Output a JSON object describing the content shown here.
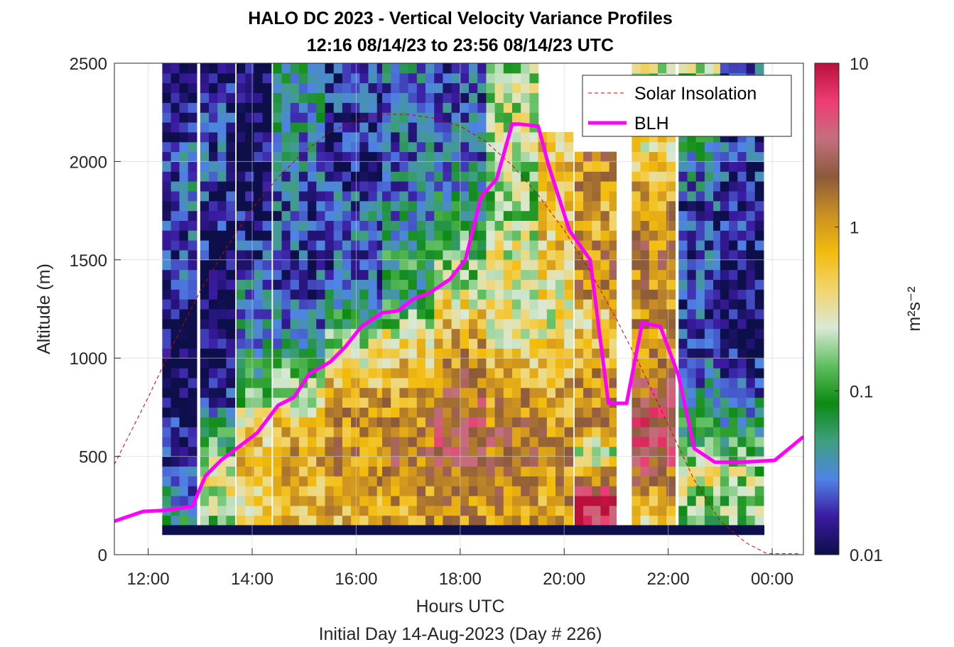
{
  "chart_data": {
    "type": "heatmap",
    "title": "HALO DC 2023 - Vertical Velocity Variance Profiles",
    "subtitle": "12:16 08/14/23 to 23:56 08/14/23  UTC",
    "xlabel": "Hours UTC",
    "footer": "Initial Day 14-Aug-2023 (Day # 226)",
    "ylabel": "Altitude (m)",
    "xlim": [
      11.35,
      24.6
    ],
    "ylim": [
      0,
      2500
    ],
    "x_ticks": [
      12,
      14,
      16,
      18,
      20,
      22,
      24
    ],
    "x_tick_labels": [
      "12:00",
      "14:00",
      "16:00",
      "18:00",
      "20:00",
      "22:00",
      "00:00"
    ],
    "y_ticks": [
      0,
      500,
      1000,
      1500,
      2000,
      2500
    ],
    "y_tick_labels": [
      "0",
      "500",
      "1000",
      "1500",
      "2000",
      "2500"
    ],
    "grid": true,
    "colorbar": {
      "label": "m²s⁻²",
      "scale": "log",
      "range": [
        0.01,
        10
      ],
      "ticks": [
        0.01,
        0.1,
        1,
        10
      ],
      "tick_labels": [
        "0.01",
        "0.1",
        "1",
        "10"
      ],
      "colors": [
        "#0c0f4a",
        "#3a1aa0",
        "#4f84e6",
        "#3f9f7f",
        "#0d8a12",
        "#5fbf5f",
        "#d9e9d6",
        "#f1d56e",
        "#f3bc0c",
        "#c98f23",
        "#8b5a3a",
        "#c46f7d",
        "#ee3c73",
        "#b8113a"
      ]
    },
    "grid_data": {
      "x_start": 12.27,
      "x_step": 0.1667,
      "y_start": 100,
      "y_step": 50,
      "bottom_band_value": 0.01,
      "bottom_band_range": [
        100,
        150
      ],
      "columns": [
        {
          "x_range": [
            12.27,
            12.6
          ],
          "profile": [
            [
              150,
              0.07
            ],
            [
              250,
              0.05
            ],
            [
              400,
              0.02
            ],
            [
              900,
              0.01
            ],
            [
              1700,
              0.02
            ],
            [
              2100,
              0.015
            ],
            [
              2500,
              0.01
            ]
          ]
        },
        {
          "x_range": [
            12.6,
            13.0
          ],
          "profile": [
            [
              150,
              0.06
            ],
            [
              300,
              0.03
            ],
            [
              500,
              0.012
            ],
            [
              1000,
              0.01
            ],
            [
              1500,
              0.02
            ],
            [
              1900,
              0.03
            ],
            [
              2500,
              0.01
            ]
          ]
        },
        {
          "x_range": [
            13.0,
            13.7
          ],
          "profile": [
            [
              200,
              0.15
            ],
            [
              400,
              0.4
            ],
            [
              600,
              0.08
            ],
            [
              900,
              0.01
            ],
            [
              1400,
              0.01
            ],
            [
              1800,
              0.02
            ],
            [
              2200,
              0.02
            ],
            [
              2500,
              0.01
            ]
          ]
        },
        {
          "x_range": [
            13.7,
            14.4
          ],
          "profile": [
            [
              200,
              0.4
            ],
            [
              500,
              0.8
            ],
            [
              700,
              0.3
            ],
            [
              900,
              0.08
            ],
            [
              1100,
              0.04
            ],
            [
              1400,
              0.03
            ],
            [
              1800,
              0.01
            ],
            [
              2500,
              0.01
            ]
          ]
        },
        {
          "x_range": [
            14.4,
            15.4
          ],
          "profile": [
            [
              200,
              0.6
            ],
            [
              500,
              0.9
            ],
            [
              700,
              0.5
            ],
            [
              900,
              0.15
            ],
            [
              1100,
              0.04
            ],
            [
              1300,
              0.02
            ],
            [
              1600,
              0.02
            ],
            [
              2000,
              0.03
            ],
            [
              2500,
              0.06
            ]
          ]
        },
        {
          "x_range": [
            15.4,
            16.5
          ],
          "profile": [
            [
              200,
              0.7
            ],
            [
              500,
              1.2
            ],
            [
              800,
              0.9
            ],
            [
              1000,
              0.4
            ],
            [
              1200,
              0.08
            ],
            [
              1400,
              0.02
            ],
            [
              1700,
              0.03
            ],
            [
              2000,
              0.015
            ],
            [
              2500,
              0.02
            ]
          ]
        },
        {
          "x_range": [
            16.5,
            17.5
          ],
          "profile": [
            [
              200,
              0.9
            ],
            [
              500,
              1.8
            ],
            [
              800,
              1.0
            ],
            [
              1100,
              0.4
            ],
            [
              1300,
              0.06
            ],
            [
              1500,
              0.08
            ],
            [
              1800,
              0.03
            ],
            [
              2200,
              0.025
            ],
            [
              2500,
              0.03
            ]
          ]
        },
        {
          "x_range": [
            17.5,
            18.5
          ],
          "profile": [
            [
              200,
              1.0
            ],
            [
              600,
              3.0
            ],
            [
              900,
              1.5
            ],
            [
              1200,
              0.6
            ],
            [
              1400,
              0.2
            ],
            [
              1700,
              0.08
            ],
            [
              2000,
              0.03
            ],
            [
              2500,
              0.02
            ]
          ]
        },
        {
          "x_range": [
            18.5,
            19.5
          ],
          "profile": [
            [
              200,
              1.1
            ],
            [
              600,
              1.8
            ],
            [
              900,
              0.8
            ],
            [
              1200,
              0.3
            ],
            [
              1500,
              0.3
            ],
            [
              1800,
              0.15
            ],
            [
              2100,
              0.25
            ],
            [
              2500,
              0.2
            ]
          ]
        },
        {
          "x_range": [
            19.5,
            20.2
          ],
          "profile": [
            [
              200,
              0.9
            ],
            [
              600,
              1.2
            ],
            [
              900,
              0.7
            ],
            [
              1200,
              0.3
            ],
            [
              1600,
              0.6
            ],
            [
              1900,
              0.5
            ],
            [
              2100,
              0.6
            ]
          ]
        },
        {
          "x_range": [
            20.2,
            21.0
          ],
          "profile": [
            [
              300,
              7.0
            ],
            [
              500,
              0.2
            ],
            [
              700,
              1.5
            ],
            [
              1000,
              0.8
            ],
            [
              1200,
              0.5
            ],
            [
              1400,
              1.5
            ],
            [
              1700,
              0.8
            ],
            [
              2000,
              1.2
            ]
          ]
        },
        {
          "x_range": [
            21.3,
            22.2
          ],
          "profile": [
            [
              200,
              0.5
            ],
            [
              500,
              3.0
            ],
            [
              700,
              4.0
            ],
            [
              900,
              1.5
            ],
            [
              1100,
              0.8
            ],
            [
              1500,
              1.5
            ],
            [
              1800,
              0.9
            ],
            [
              2100,
              0.4
            ],
            [
              2500,
              0.2
            ]
          ]
        },
        {
          "x_range": [
            22.2,
            23.0
          ],
          "profile": [
            [
              200,
              0.1
            ],
            [
              400,
              0.3
            ],
            [
              700,
              0.06
            ],
            [
              1000,
              0.02
            ],
            [
              1400,
              0.02
            ],
            [
              1800,
              0.02
            ],
            [
              2200,
              0.1
            ],
            [
              2500,
              0.2
            ]
          ]
        },
        {
          "x_range": [
            23.0,
            23.85
          ],
          "profile": [
            [
              200,
              0.15
            ],
            [
              400,
              0.2
            ],
            [
              600,
              0.08
            ],
            [
              900,
              0.02
            ],
            [
              1200,
              0.01
            ],
            [
              1600,
              0.015
            ],
            [
              2000,
              0.02
            ],
            [
              2500,
              0.02
            ]
          ]
        }
      ]
    },
    "series": [
      {
        "name": "Solar Insolation",
        "style": "dashed",
        "color": "#d00000",
        "x": [
          11.35,
          12.0,
          12.5,
          13.0,
          13.5,
          14.0,
          14.5,
          15.0,
          15.5,
          16.0,
          16.5,
          17.0,
          17.5,
          18.0,
          18.5,
          19.0,
          19.5,
          20.0,
          20.5,
          21.0,
          21.5,
          22.0,
          22.5,
          23.0,
          23.5,
          23.9,
          24.0,
          24.55
        ],
        "y": [
          460,
          800,
          1080,
          1340,
          1560,
          1760,
          1920,
          2050,
          2150,
          2210,
          2240,
          2240,
          2220,
          2180,
          2100,
          1980,
          1830,
          1650,
          1440,
          1200,
          940,
          660,
          380,
          170,
          60,
          5,
          5,
          5
        ]
      },
      {
        "name": "BLH",
        "style": "solid",
        "color": "#ff00ff",
        "x": [
          11.35,
          11.9,
          12.3,
          12.85,
          13.1,
          13.4,
          13.8,
          14.1,
          14.5,
          14.8,
          15.1,
          15.5,
          15.8,
          16.1,
          16.5,
          16.8,
          17.1,
          17.4,
          17.8,
          18.1,
          18.4,
          18.7,
          19.0,
          19.15,
          19.5,
          19.7,
          20.1,
          20.5,
          20.85,
          21.2,
          21.5,
          21.85,
          22.2,
          22.5,
          22.9,
          23.4,
          24.05,
          24.6
        ],
        "y": [
          170,
          220,
          225,
          245,
          400,
          480,
          560,
          620,
          760,
          800,
          920,
          980,
          1060,
          1160,
          1230,
          1240,
          1300,
          1330,
          1400,
          1500,
          1820,
          1910,
          2190,
          2190,
          2180,
          1980,
          1650,
          1500,
          770,
          770,
          1180,
          1160,
          910,
          540,
          470,
          470,
          480,
          600
        ]
      }
    ],
    "legend": {
      "placement": "top-right",
      "entries": [
        "Solar Insolation",
        "BLH"
      ]
    }
  }
}
